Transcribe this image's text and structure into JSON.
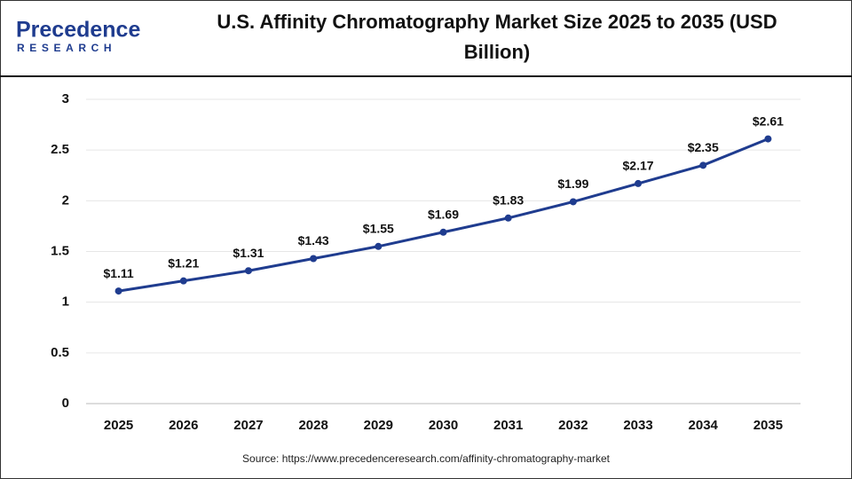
{
  "logo": {
    "name": "Precedence",
    "tagline": "RESEARCH"
  },
  "chart_data": {
    "type": "line",
    "title": "U.S. Affinity Chromatography Market Size 2025 to 2035 (USD Billion)",
    "categories": [
      "2025",
      "2026",
      "2027",
      "2028",
      "2029",
      "2030",
      "2031",
      "2032",
      "2033",
      "2034",
      "2035"
    ],
    "series": [
      {
        "color": "#1f3c8f",
        "values": [
          1.11,
          1.21,
          1.31,
          1.43,
          1.55,
          1.69,
          1.83,
          1.99,
          2.17,
          2.35,
          2.61
        ],
        "value_labels": [
          "$1.11",
          "$1.21",
          "$1.31",
          "$1.43",
          "$1.55",
          "$1.69",
          "$1.83",
          "$1.99",
          "$2.17",
          "$2.35",
          "$2.61"
        ]
      }
    ],
    "ylim": [
      0,
      3
    ],
    "yticks": [
      0,
      0.5,
      1,
      1.5,
      2,
      2.5,
      3
    ],
    "grid": true,
    "source": "Source: https://www.precedenceresearch.com/affinity-chromatography-market"
  }
}
